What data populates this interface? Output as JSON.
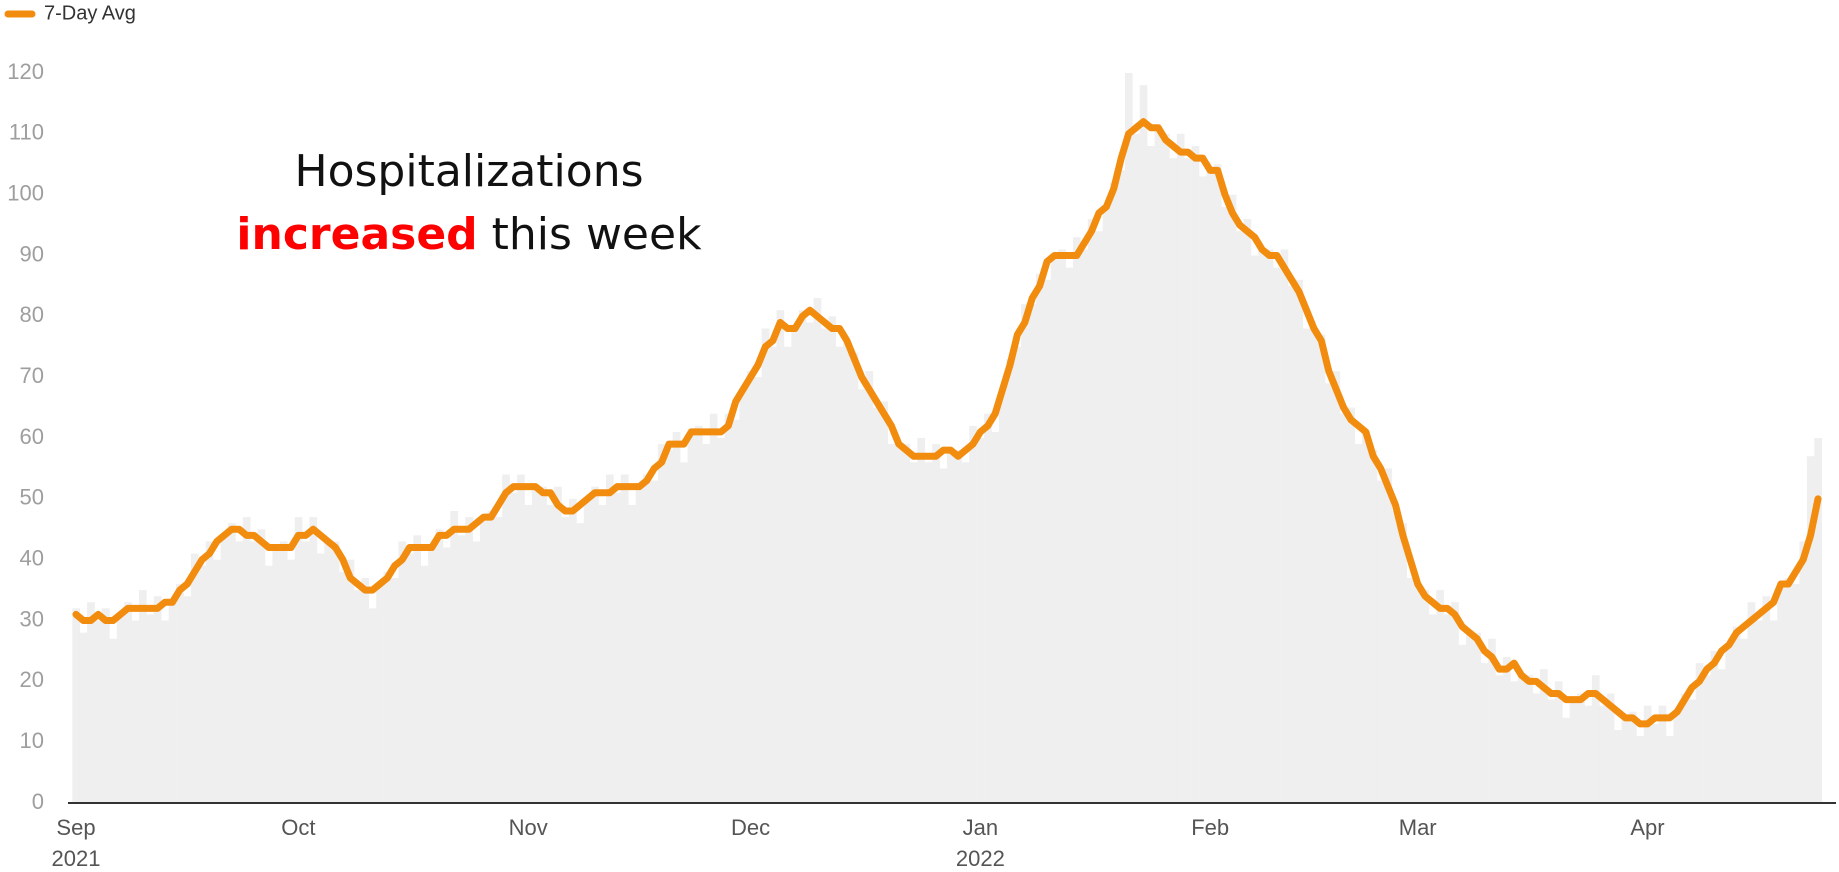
{
  "chart_data": {
    "type": "line",
    "categories": [
      "Sep",
      null,
      null,
      null,
      null,
      null,
      null,
      null,
      null,
      null,
      null,
      null,
      null,
      null,
      null,
      null,
      null,
      null,
      null,
      null,
      null,
      null,
      null,
      null,
      null,
      null,
      null,
      null,
      null,
      null,
      "Oct",
      null,
      null,
      null,
      null,
      null,
      null,
      null,
      null,
      null,
      null,
      null,
      null,
      null,
      null,
      null,
      null,
      null,
      null,
      null,
      null,
      null,
      null,
      null,
      null,
      null,
      null,
      null,
      null,
      null,
      null,
      "Nov",
      null,
      null,
      null,
      null,
      null,
      null,
      null,
      null,
      null,
      null,
      null,
      null,
      null,
      null,
      null,
      null,
      null,
      null,
      null,
      null,
      null,
      null,
      null,
      null,
      null,
      null,
      null,
      null,
      null,
      "Dec",
      null,
      null,
      null,
      null,
      null,
      null,
      null,
      null,
      null,
      null,
      null,
      null,
      null,
      null,
      null,
      null,
      null,
      null,
      null,
      null,
      null,
      null,
      null,
      null,
      null,
      null,
      null,
      null,
      null,
      null,
      "Jan",
      null,
      null,
      null,
      null,
      null,
      null,
      null,
      null,
      null,
      null,
      null,
      null,
      null,
      null,
      null,
      null,
      null,
      null,
      null,
      null,
      null,
      null,
      null,
      null,
      null,
      null,
      null,
      null,
      null,
      null,
      "Feb",
      null,
      null,
      null,
      null,
      null,
      null,
      null,
      null,
      null,
      null,
      null,
      null,
      null,
      null,
      null,
      null,
      null,
      null,
      null,
      null,
      null,
      null,
      null,
      null,
      null,
      null,
      null,
      "Mar",
      null,
      null,
      null,
      null,
      null,
      null,
      null,
      null,
      null,
      null,
      null,
      null,
      null,
      null,
      null,
      null,
      null,
      null,
      null,
      null,
      null,
      null,
      null,
      null,
      null,
      null,
      null,
      null,
      null,
      null,
      "Apr",
      null,
      null,
      null,
      null,
      null,
      null,
      null,
      null,
      null,
      null,
      null,
      null,
      null,
      null,
      null,
      null,
      null,
      null,
      null,
      null,
      null,
      null,
      null
    ],
    "year_labels": [
      {
        "category": 0,
        "label": "2021"
      },
      {
        "category": 122,
        "label": "2022"
      }
    ],
    "bars": {
      "color": "#efefef",
      "values": [
        32,
        28,
        33,
        30,
        32,
        27,
        31,
        33,
        30,
        35,
        31,
        34,
        30,
        33,
        36,
        34,
        41,
        39,
        43,
        40,
        44,
        46,
        43,
        47,
        43,
        45,
        39,
        42,
        43,
        40,
        47,
        43,
        47,
        41,
        43,
        43,
        38,
        40,
        35,
        37,
        32,
        36,
        38,
        37,
        43,
        41,
        44,
        39,
        42,
        45,
        42,
        48,
        44,
        47,
        43,
        47,
        48,
        47,
        54,
        51,
        54,
        49,
        52,
        52,
        49,
        52,
        47,
        50,
        46,
        50,
        52,
        49,
        54,
        51,
        54,
        49,
        52,
        54,
        53,
        59,
        58,
        61,
        56,
        61,
        62,
        59,
        64,
        60,
        64,
        63,
        68,
        71,
        70,
        78,
        75,
        81,
        75,
        78,
        81,
        79,
        83,
        78,
        80,
        75,
        76,
        74,
        68,
        71,
        65,
        66,
        59,
        59,
        59,
        56,
        60,
        56,
        59,
        55,
        58,
        58,
        56,
        62,
        60,
        64,
        61,
        68,
        73,
        75,
        82,
        82,
        87,
        86,
        90,
        91,
        88,
        93,
        91,
        96,
        94,
        98,
        102,
        104,
        120,
        110,
        118,
        108,
        111,
        110,
        106,
        110,
        106,
        108,
        103,
        104,
        105,
        98,
        100,
        94,
        96,
        90,
        91,
        91,
        88,
        91,
        85,
        86,
        78,
        78,
        77,
        69,
        71,
        64,
        65,
        59,
        61,
        58,
        53,
        55,
        48,
        46,
        37,
        36,
        35,
        31,
        35,
        31,
        33,
        26,
        28,
        28,
        23,
        27,
        21,
        24,
        20,
        21,
        21,
        18,
        22,
        17,
        20,
        14,
        17,
        18,
        16,
        21,
        16,
        18,
        12,
        14,
        15,
        11,
        16,
        13,
        16,
        11,
        15,
        18,
        17,
        23,
        21,
        25,
        22,
        26,
        29,
        27,
        33,
        30,
        34,
        30,
        36,
        37,
        36,
        43,
        57,
        60
      ]
    },
    "series": [
      {
        "name": "7-Day Avg",
        "color": "#f28c0f",
        "values": [
          31,
          30,
          30,
          31,
          30,
          30,
          31,
          32,
          32,
          32,
          32,
          32,
          33,
          33,
          35,
          36,
          38,
          40,
          41,
          43,
          44,
          45,
          45,
          44,
          44,
          43,
          42,
          42,
          42,
          42,
          44,
          44,
          45,
          44,
          43,
          42,
          40,
          37,
          36,
          35,
          35,
          36,
          37,
          39,
          40,
          42,
          42,
          42,
          42,
          44,
          44,
          45,
          45,
          45,
          46,
          47,
          47,
          49,
          51,
          52,
          52,
          52,
          52,
          51,
          51,
          49,
          48,
          48,
          49,
          50,
          51,
          51,
          51,
          52,
          52,
          52,
          52,
          53,
          55,
          56,
          59,
          59,
          59,
          61,
          61,
          61,
          61,
          61,
          62,
          66,
          68,
          70,
          72,
          75,
          76,
          79,
          78,
          78,
          80,
          81,
          80,
          79,
          78,
          78,
          76,
          73,
          70,
          68,
          66,
          64,
          62,
          59,
          58,
          57,
          57,
          57,
          57,
          58,
          58,
          57,
          58,
          59,
          61,
          62,
          64,
          68,
          72,
          77,
          79,
          83,
          85,
          89,
          90,
          90,
          90,
          90,
          92,
          94,
          97,
          98,
          101,
          106,
          110,
          111,
          112,
          111,
          111,
          109,
          108,
          107,
          107,
          106,
          106,
          104,
          104,
          100,
          97,
          95,
          94,
          93,
          91,
          90,
          90,
          88,
          86,
          84,
          81,
          78,
          76,
          71,
          68,
          65,
          63,
          62,
          61,
          57,
          55,
          52,
          49,
          44,
          40,
          36,
          34,
          33,
          32,
          32,
          31,
          29,
          28,
          27,
          25,
          24,
          22,
          22,
          23,
          21,
          20,
          20,
          19,
          18,
          18,
          17,
          17,
          17,
          18,
          18,
          17,
          16,
          15,
          14,
          14,
          13,
          13,
          14,
          14,
          14,
          15,
          17,
          19,
          20,
          22,
          23,
          25,
          26,
          28,
          29,
          30,
          31,
          32,
          33,
          36,
          36,
          38,
          40,
          44,
          50
        ]
      }
    ],
    "ylim": [
      0,
      120
    ],
    "yticks": [
      0,
      10,
      20,
      30,
      40,
      50,
      60,
      70,
      80,
      90,
      100,
      110,
      120
    ],
    "annotation": {
      "line1": "Hospitalizations",
      "highlight": "increased",
      "highlight_color": "#ff0000",
      "rest": "this week"
    },
    "legend": "top-left"
  }
}
